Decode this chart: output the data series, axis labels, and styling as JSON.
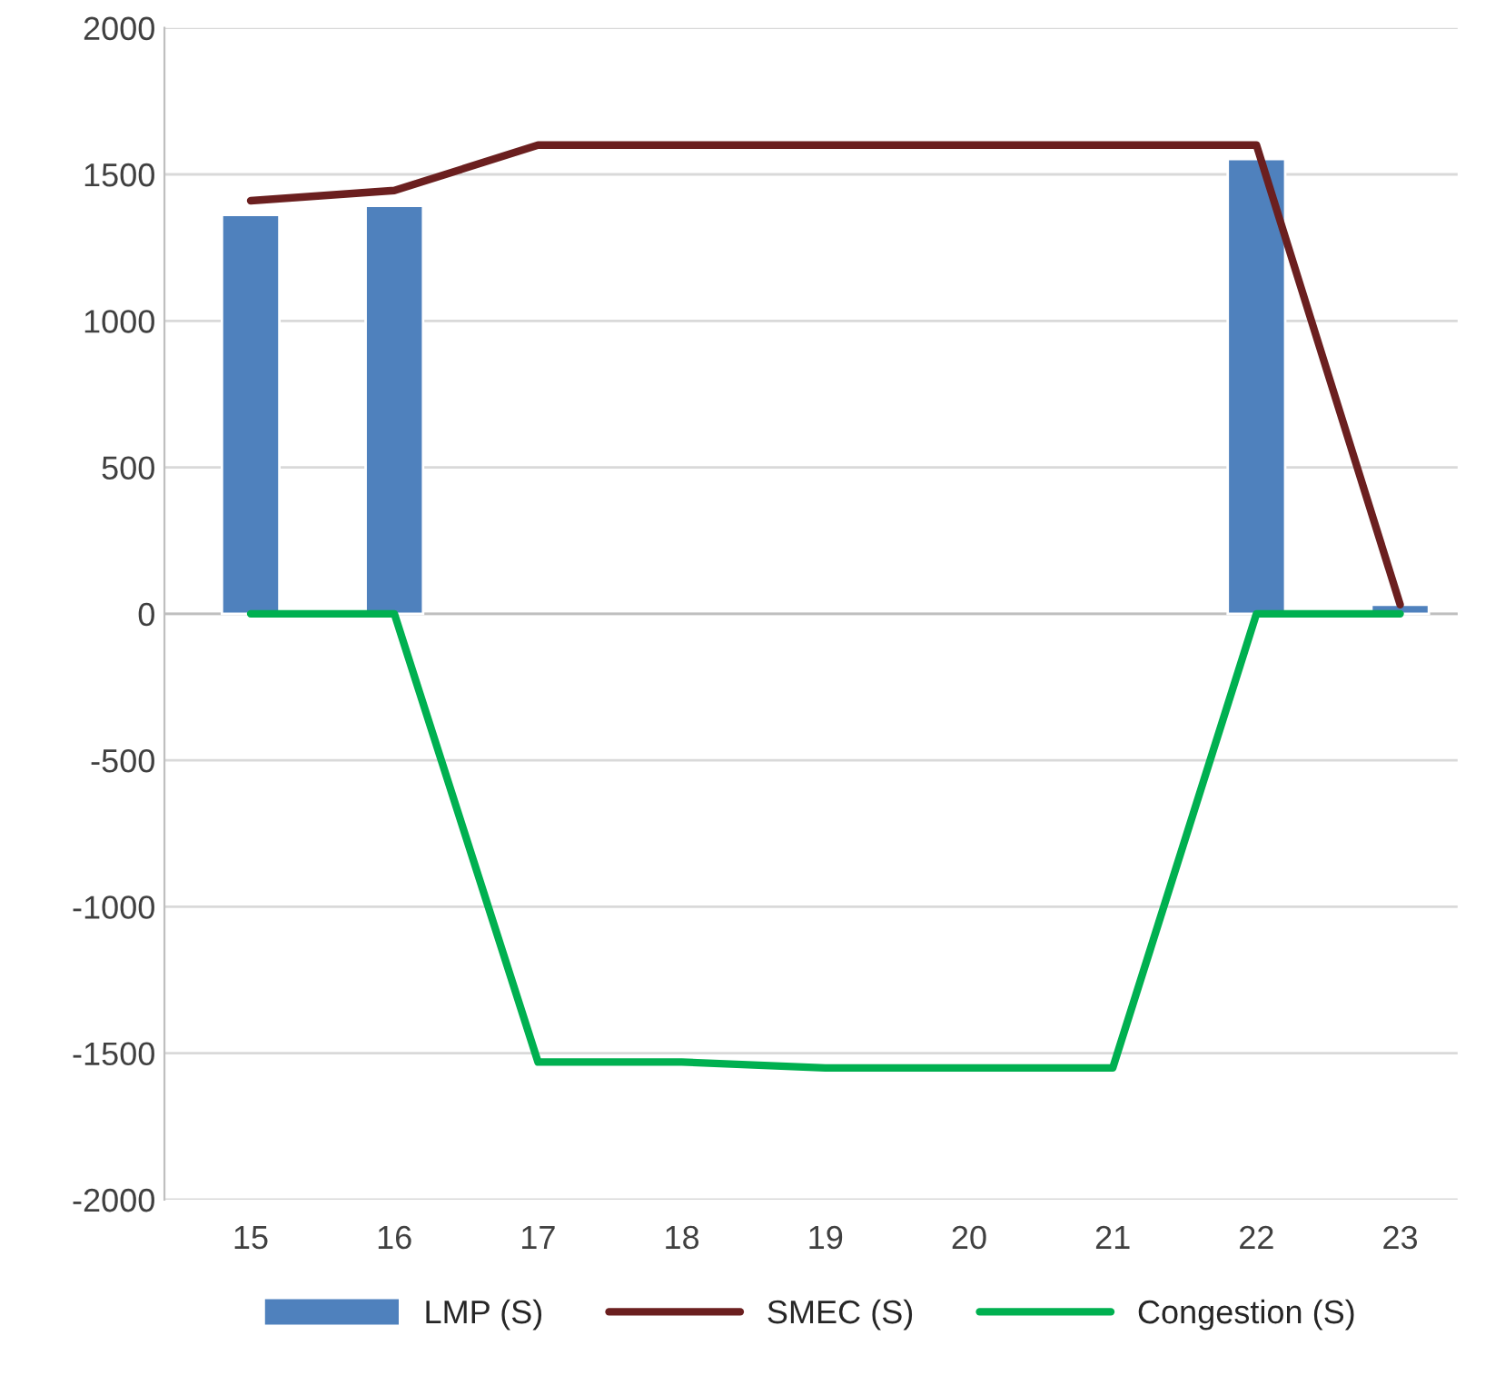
{
  "chart_data": {
    "type": "bar",
    "categories": [
      "15",
      "16",
      "17",
      "18",
      "19",
      "20",
      "21",
      "22",
      "23"
    ],
    "series": [
      {
        "name": "LMP (S)",
        "color": "#4f81bd",
        "values": [
          1362,
          1393,
          null,
          null,
          null,
          null,
          null,
          1552,
          31
        ]
      },
      {
        "name": "SMEC (S)",
        "type": "line",
        "color": "#6b1f1f",
        "values": [
          1410,
          1445,
          1600,
          1600,
          1600,
          1600,
          1600,
          1600,
          31
        ]
      },
      {
        "name": "Congestion (S)",
        "type": "line",
        "color": "#00b050",
        "values": [
          0,
          0,
          -1530,
          -1530,
          -1550,
          -1550,
          -1550,
          0,
          0
        ]
      }
    ],
    "ylim": [
      -2000,
      2000
    ],
    "yticks": [
      -2000,
      -1500,
      -1000,
      -500,
      0,
      500,
      1000,
      1500,
      2000
    ],
    "grid": "y",
    "legend": "bottom",
    "marker": "none",
    "line_style": "solid"
  }
}
